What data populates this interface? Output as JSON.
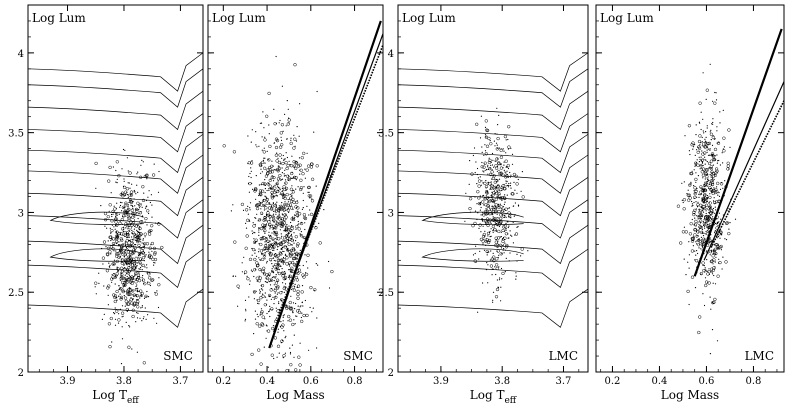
{
  "chart_data": [
    {
      "type": "scatter",
      "panel": "HR diagram",
      "corner_label": "Log Lum",
      "galaxy_label": "SMC",
      "xlabel": "Log T",
      "xlabel_sub": "eff",
      "xlim": [
        3.97,
        3.66
      ],
      "ylim": [
        2.0,
        4.3
      ],
      "xticks": [
        "3.9",
        "3.8",
        "3.7"
      ],
      "yticks": [
        "2",
        "2.5",
        "3",
        "3.5",
        "4"
      ],
      "stars": {
        "x_center": 3.79,
        "x_spread": 0.022,
        "y_center": 2.75,
        "y_spread": 0.23,
        "count": 820
      },
      "tracks_start_logL": [
        2.42,
        2.67,
        2.82,
        2.98,
        3.12,
        3.26,
        3.39,
        3.52,
        3.66,
        3.8,
        3.9
      ]
    },
    {
      "type": "scatter",
      "panel": "mass-luminosity",
      "corner_label": "Log Lum",
      "galaxy_label": "SMC",
      "xlabel": "Log Mass",
      "xlim": [
        0.13,
        0.93
      ],
      "ylim": [
        2.0,
        4.3
      ],
      "xticks": [
        "0.2",
        "0.4",
        "0.6",
        "0.8"
      ],
      "stars": {
        "x_center": 0.45,
        "x_spread": 0.075,
        "y_center": 2.85,
        "y_spread": 0.34,
        "count": 1200
      },
      "relations": [
        {
          "x": [
            0.41,
            0.92
          ],
          "y": [
            2.15,
            4.2
          ],
          "style": "thick"
        },
        {
          "x": [
            0.43,
            0.93
          ],
          "y": [
            2.25,
            4.12
          ],
          "style": "thin"
        },
        {
          "x": [
            0.45,
            0.93
          ],
          "y": [
            2.35,
            4.05
          ],
          "style": "dotted"
        }
      ]
    },
    {
      "type": "scatter",
      "panel": "HR diagram",
      "corner_label": "Log Lum",
      "galaxy_label": "LMC",
      "xlabel": "Log T",
      "xlabel_sub": "eff",
      "xlim": [
        3.97,
        3.66
      ],
      "ylim": [
        2.0,
        4.3
      ],
      "xticks": [
        "3.9",
        "3.8",
        "3.7"
      ],
      "yticks": [
        "2",
        "2.5",
        "3",
        "3.5",
        "4"
      ],
      "stars": {
        "x_center": 3.81,
        "x_spread": 0.018,
        "y_center": 3.05,
        "y_spread": 0.22,
        "count": 560
      },
      "tracks_start_logL": [
        2.42,
        2.67,
        2.82,
        2.98,
        3.12,
        3.26,
        3.39,
        3.52,
        3.66,
        3.8,
        3.9
      ]
    },
    {
      "type": "scatter",
      "panel": "mass-luminosity",
      "corner_label": "Log Lum",
      "galaxy_label": "LMC",
      "xlabel": "Log Mass",
      "xlim": [
        0.13,
        0.93
      ],
      "ylim": [
        2.0,
        4.3
      ],
      "xticks": [
        "0.2",
        "0.4",
        "0.6",
        "0.8"
      ],
      "stars": {
        "x_center": 0.6,
        "x_spread": 0.04,
        "y_center": 3.05,
        "y_spread": 0.28,
        "count": 700
      },
      "relations": [
        {
          "x": [
            0.55,
            0.92
          ],
          "y": [
            2.6,
            4.15
          ],
          "style": "thick"
        },
        {
          "x": [
            0.59,
            0.93
          ],
          "y": [
            2.7,
            3.82
          ],
          "style": "thin"
        },
        {
          "x": [
            0.62,
            0.93
          ],
          "y": [
            2.78,
            3.7
          ],
          "style": "dotted"
        }
      ]
    }
  ]
}
